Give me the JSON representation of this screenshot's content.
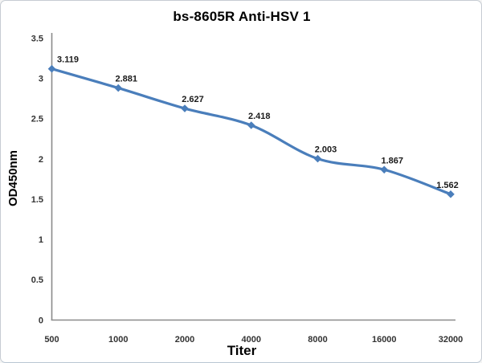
{
  "chart_data": {
    "type": "line",
    "title": "bs-8605R Anti-HSV 1",
    "xlabel": "Titer",
    "ylabel": "OD450nm",
    "categories": [
      "500",
      "1000",
      "2000",
      "4000",
      "8000",
      "16000",
      "32000"
    ],
    "series": [
      {
        "name": "OD450nm",
        "values": [
          3.119,
          2.881,
          2.627,
          2.418,
          2.003,
          1.867,
          1.562
        ],
        "data_labels": [
          "3.119",
          "2.881",
          "2.627",
          "2.418",
          "2.003",
          "1.867",
          "1.562"
        ]
      }
    ],
    "y_ticks": [
      "3.5",
      "3",
      "2.5",
      "2",
      "1.5",
      "1",
      "0.5",
      "0"
    ],
    "ylim": [
      0,
      3.5
    ],
    "grid": false,
    "legend_position": "none",
    "line_style": "smooth",
    "marker": "diamond",
    "colors": {
      "line": "#4A7EBB",
      "marker": "#4A7EBB",
      "axis": "#8A8A8A",
      "tick_text": "#333333",
      "data_label_text": "#1a1a1a",
      "title_text": "#000000",
      "background": "#FFFFFF",
      "frame_border": "#C6CCD3"
    }
  }
}
